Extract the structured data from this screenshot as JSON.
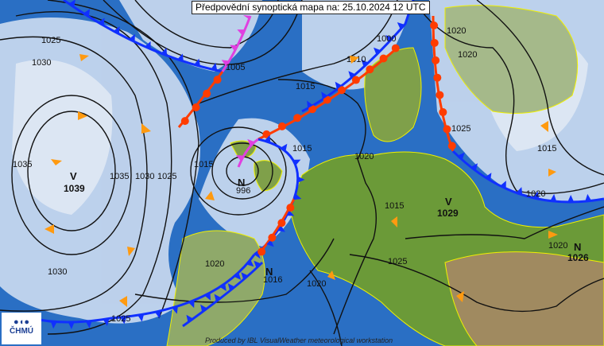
{
  "title": "Předpovědní synoptická mapa na: 25.10.2024 12 UTC",
  "credit": "Produced by IBL VisualWeather meteorological workstation",
  "logo": {
    "symbol": "●◖●",
    "text": "ČHMÚ"
  },
  "colors": {
    "ocean": "#2a6fc4",
    "cloud": "#b9cfe9",
    "land": "#5a8f2a",
    "cold_front": "#1030ff",
    "warm_front": "#ff3c00",
    "occluded_front": "#e040e0",
    "frame": "#ffff00"
  },
  "pressure_centers": [
    {
      "type": "V",
      "value": "1039"
    },
    {
      "type": "N",
      "value": "996"
    },
    {
      "type": "N",
      "value": "1016"
    },
    {
      "type": "V",
      "value": "1029"
    },
    {
      "type": "N",
      "value": "1026"
    }
  ],
  "isobar_labels": [
    "1025",
    "1030",
    "1035",
    "1030",
    "1035",
    "1030",
    "1025",
    "1025",
    "1020",
    "1015",
    "1015",
    "1010",
    "1005",
    "1000",
    "1015",
    "1020",
    "1020",
    "1025",
    "1015",
    "1020",
    "1025",
    "1020",
    "1020",
    "1015",
    "1020"
  ]
}
